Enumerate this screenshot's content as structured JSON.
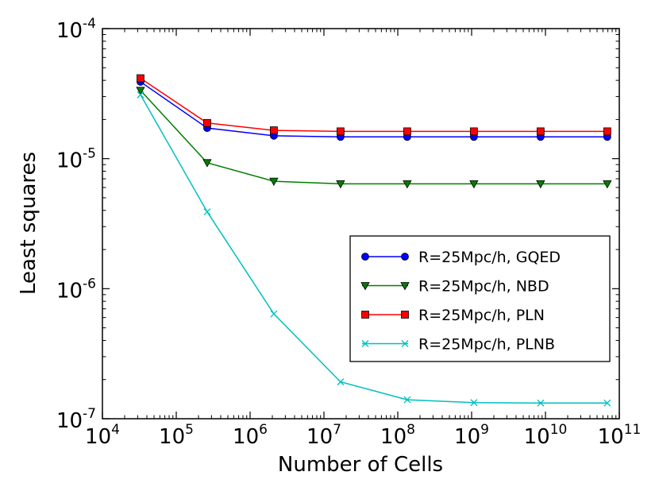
{
  "chart_data": {
    "type": "line",
    "xscale": "log",
    "yscale": "log",
    "xlabel": "Number of Cells",
    "ylabel": "Least squares",
    "xlim": [
      10000,
      100000000000
    ],
    "ylim": [
      1e-07,
      0.0001
    ],
    "x_ticks": [
      {
        "base": "10",
        "exp": "4",
        "value": 10000
      },
      {
        "base": "10",
        "exp": "5",
        "value": 100000
      },
      {
        "base": "10",
        "exp": "6",
        "value": 1000000
      },
      {
        "base": "10",
        "exp": "7",
        "value": 10000000
      },
      {
        "base": "10",
        "exp": "8",
        "value": 100000000
      },
      {
        "base": "10",
        "exp": "9",
        "value": 1000000000
      },
      {
        "base": "10",
        "exp": "10",
        "value": 10000000000
      },
      {
        "base": "10",
        "exp": "11",
        "value": 100000000000
      }
    ],
    "y_ticks": [
      {
        "base": "10",
        "exp": "-7",
        "value": 1e-07
      },
      {
        "base": "10",
        "exp": "-6",
        "value": 1e-06
      },
      {
        "base": "10",
        "exp": "-5",
        "value": 1e-05
      },
      {
        "base": "10",
        "exp": "-4",
        "value": 0.0001
      }
    ],
    "x": [
      32768,
      262144,
      2097152,
      16777216,
      134217728,
      1073741824,
      8589934592,
      68719476736
    ],
    "series": [
      {
        "name": "R=25Mpc/h, GQED",
        "color": "#0000ff",
        "marker": "circle",
        "values": [
          3.9e-05,
          1.72e-05,
          1.5e-05,
          1.47e-05,
          1.47e-05,
          1.47e-05,
          1.47e-05,
          1.47e-05
        ]
      },
      {
        "name": "R=25Mpc/h, NBD",
        "color": "#007f00",
        "marker": "triangle-down",
        "values": [
          3.35e-05,
          9.3e-06,
          6.7e-06,
          6.4e-06,
          6.4e-06,
          6.4e-06,
          6.4e-06,
          6.4e-06
        ]
      },
      {
        "name": "R=25Mpc/h, PLN",
        "color": "#ff0000",
        "marker": "square",
        "values": [
          4.15e-05,
          1.88e-05,
          1.65e-05,
          1.62e-05,
          1.62e-05,
          1.62e-05,
          1.62e-05,
          1.62e-05
        ]
      },
      {
        "name": "R=25Mpc/h, PLNB",
        "color": "#00bfbf",
        "marker": "x",
        "values": [
          3.1e-05,
          3.9e-06,
          6.4e-07,
          1.92e-07,
          1.4e-07,
          1.33e-07,
          1.32e-07,
          1.32e-07
        ]
      }
    ],
    "legend_position": "center-right"
  }
}
